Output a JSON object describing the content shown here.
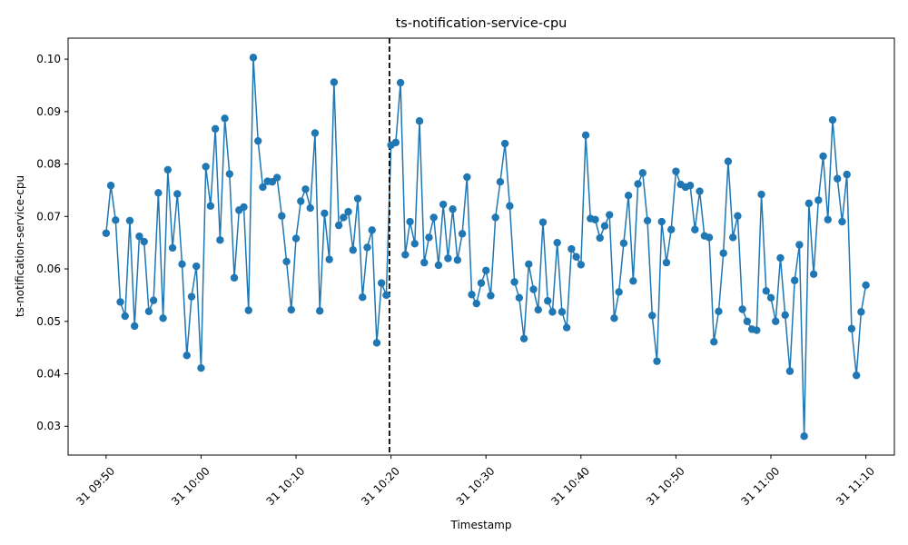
{
  "chart_data": {
    "type": "line",
    "title": "ts-notification-service-cpu",
    "xlabel": "Timestamp",
    "ylabel": "ts-notification-service-cpu",
    "x_range": [
      "2023-01-31 09:46:00",
      "2023-01-31 11:13:00"
    ],
    "ylim": [
      0.0245,
      0.104
    ],
    "grid": false,
    "legend": "none",
    "line_color": "#1f77b4",
    "marker": "circle",
    "x_ticks": [
      {
        "t": "2023-01-31 09:50",
        "label": "31 09:50"
      },
      {
        "t": "2023-01-31 10:00",
        "label": "31 10:00"
      },
      {
        "t": "2023-01-31 10:10",
        "label": "31 10:10"
      },
      {
        "t": "2023-01-31 10:20",
        "label": "31 10:20"
      },
      {
        "t": "2023-01-31 10:30",
        "label": "31 10:30"
      },
      {
        "t": "2023-01-31 10:40",
        "label": "31 10:40"
      },
      {
        "t": "2023-01-31 10:50",
        "label": "31 10:50"
      },
      {
        "t": "2023-01-31 11:00",
        "label": "31 11:00"
      },
      {
        "t": "2023-01-31 11:10",
        "label": "31 11:10"
      }
    ],
    "y_ticks": [
      0.03,
      0.04,
      0.05,
      0.06,
      0.07,
      0.08,
      0.09,
      0.1
    ],
    "y_tick_labels": [
      "0.03",
      "0.04",
      "0.05",
      "0.06",
      "0.07",
      "0.08",
      "0.09",
      "0.10"
    ],
    "vline": {
      "t": "2023-01-31 10:19:50",
      "style": "dashed",
      "color": "#000000"
    },
    "series": [
      {
        "x_start": "2023-01-31 09:50:00",
        "x_step_seconds": 30,
        "values": [
          0.0668,
          0.0759,
          0.0693,
          0.0537,
          0.051,
          0.0692,
          0.0491,
          0.0662,
          0.0652,
          0.0519,
          0.054,
          0.0745,
          0.0506,
          0.0789,
          0.064,
          0.0743,
          0.0609,
          0.0435,
          0.0547,
          0.0605,
          0.0411,
          0.0795,
          0.072,
          0.0867,
          0.0655,
          0.0887,
          0.0781,
          0.0583,
          0.0712,
          0.0718,
          0.0521,
          0.1003,
          0.0844,
          0.0756,
          0.0767,
          0.0766,
          0.0774,
          0.0701,
          0.0614,
          0.0522,
          0.0658,
          0.0729,
          0.0752,
          0.0716,
          0.0859,
          0.052,
          0.0706,
          0.0618,
          0.0956,
          0.0683,
          0.0698,
          0.0709,
          0.0636,
          0.0734,
          0.0546,
          0.0641,
          0.0674,
          0.0459,
          0.0573,
          0.055,
          0.0836,
          0.0841,
          0.0955,
          0.0627,
          0.069,
          0.0648,
          0.0882,
          0.0612,
          0.066,
          0.0698,
          0.0607,
          0.0723,
          0.062,
          0.0714,
          0.0617,
          0.0667,
          0.0775,
          0.0551,
          0.0534,
          0.0573,
          0.0597,
          0.0549,
          0.0698,
          0.0766,
          0.0839,
          0.072,
          0.0575,
          0.0545,
          0.0467,
          0.0609,
          0.0561,
          0.0522,
          0.0689,
          0.0539,
          0.0518,
          0.065,
          0.0518,
          0.0488,
          0.0638,
          0.0623,
          0.0608,
          0.0855,
          0.0696,
          0.0694,
          0.0659,
          0.0682,
          0.0703,
          0.0506,
          0.0556,
          0.0649,
          0.074,
          0.0577,
          0.0762,
          0.0783,
          0.0692,
          0.0511,
          0.0424,
          0.069,
          0.0612,
          0.0675,
          0.0786,
          0.0761,
          0.0756,
          0.0759,
          0.0675,
          0.0748,
          0.0663,
          0.066,
          0.0461,
          0.0519,
          0.063,
          0.0805,
          0.066,
          0.0701,
          0.0523,
          0.05,
          0.0485,
          0.0483,
          0.0742,
          0.0558,
          0.0545,
          0.05,
          0.0621,
          0.0512,
          0.0405,
          0.0578,
          0.0646,
          0.0281,
          0.0725,
          0.059,
          0.0731,
          0.0815,
          0.0694,
          0.0884,
          0.0772,
          0.069,
          0.078,
          0.0486,
          0.0397,
          0.0518,
          0.0569
        ]
      }
    ]
  }
}
